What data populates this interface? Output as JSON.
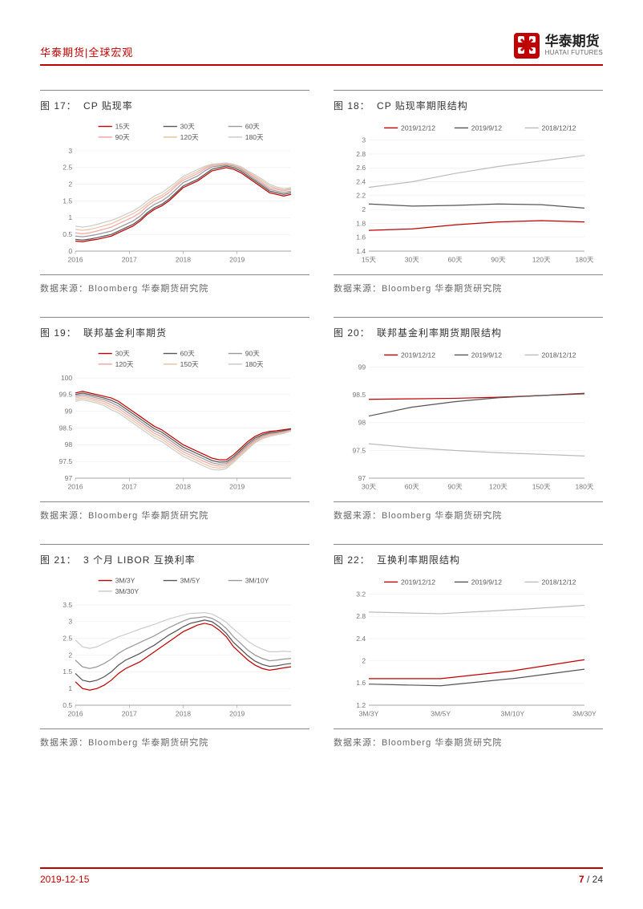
{
  "header": {
    "title": "华泰期货|全球宏观",
    "logo_cn": "华泰期货",
    "logo_en": "HUATAI FUTURES"
  },
  "colors": {
    "brand_red": "#c00000",
    "grey_dark": "#555555",
    "grey_mid": "#999999",
    "grey_light": "#cccccc",
    "pink": "#f4a6a6",
    "salmon": "#e8c4a0",
    "axis": "#888888",
    "bg": "#ffffff"
  },
  "source_label": "数据来源：Bloomberg 华泰期货研究院",
  "charts": [
    {
      "id": 17,
      "title": "CP 贴现率",
      "type": "line-multi-time",
      "legend": [
        "15天",
        "30天",
        "60天",
        "90天",
        "120天",
        "180天"
      ],
      "legend_colors": [
        "#c00000",
        "#555555",
        "#999999",
        "#f4a6a6",
        "#e8c4a0",
        "#cccccc"
      ],
      "x_labels": [
        "2016",
        "2017",
        "2018",
        "2019"
      ],
      "y_ticks": [
        0,
        0.5,
        1,
        1.5,
        2,
        2.5,
        3
      ],
      "series": [
        [
          0.3,
          0.28,
          0.32,
          0.35,
          0.4,
          0.45,
          0.55,
          0.65,
          0.75,
          0.9,
          1.1,
          1.25,
          1.35,
          1.5,
          1.7,
          1.9,
          2.0,
          2.1,
          2.25,
          2.4,
          2.45,
          2.5,
          2.45,
          2.35,
          2.2,
          2.05,
          1.9,
          1.75,
          1.7,
          1.65,
          1.7
        ],
        [
          0.35,
          0.33,
          0.36,
          0.4,
          0.45,
          0.5,
          0.6,
          0.7,
          0.8,
          0.95,
          1.15,
          1.3,
          1.4,
          1.55,
          1.75,
          1.95,
          2.05,
          2.15,
          2.3,
          2.45,
          2.5,
          2.55,
          2.5,
          2.4,
          2.25,
          2.1,
          1.95,
          1.8,
          1.75,
          1.7,
          1.75
        ],
        [
          0.45,
          0.43,
          0.46,
          0.5,
          0.55,
          0.6,
          0.7,
          0.8,
          0.9,
          1.05,
          1.25,
          1.4,
          1.5,
          1.65,
          1.85,
          2.05,
          2.15,
          2.25,
          2.4,
          2.52,
          2.55,
          2.58,
          2.55,
          2.45,
          2.3,
          2.15,
          2.0,
          1.85,
          1.8,
          1.75,
          1.8
        ],
        [
          0.55,
          0.52,
          0.55,
          0.6,
          0.66,
          0.72,
          0.82,
          0.92,
          1.02,
          1.15,
          1.35,
          1.5,
          1.6,
          1.75,
          1.95,
          2.12,
          2.22,
          2.32,
          2.46,
          2.56,
          2.58,
          2.6,
          2.57,
          2.48,
          2.34,
          2.2,
          2.05,
          1.9,
          1.85,
          1.8,
          1.85
        ],
        [
          0.65,
          0.62,
          0.65,
          0.7,
          0.76,
          0.82,
          0.92,
          1.02,
          1.12,
          1.25,
          1.42,
          1.57,
          1.67,
          1.82,
          2.0,
          2.18,
          2.28,
          2.38,
          2.5,
          2.58,
          2.6,
          2.62,
          2.58,
          2.5,
          2.37,
          2.24,
          2.1,
          1.95,
          1.88,
          1.83,
          1.88
        ],
        [
          0.75,
          0.72,
          0.75,
          0.8,
          0.86,
          0.92,
          1.0,
          1.1,
          1.2,
          1.33,
          1.5,
          1.65,
          1.75,
          1.9,
          2.06,
          2.24,
          2.34,
          2.44,
          2.54,
          2.6,
          2.62,
          2.64,
          2.6,
          2.53,
          2.4,
          2.28,
          2.15,
          2.0,
          1.92,
          1.87,
          1.9
        ]
      ]
    },
    {
      "id": 18,
      "title": "CP 贴现率期限结构",
      "type": "line-term",
      "legend": [
        "2019/12/12",
        "2019/9/12",
        "2018/12/12"
      ],
      "legend_colors": [
        "#c00000",
        "#555555",
        "#bbbbbb"
      ],
      "x_labels": [
        "15天",
        "30天",
        "60天",
        "90天",
        "120天",
        "180天"
      ],
      "y_ticks": [
        1.4,
        1.6,
        1.8,
        2.0,
        2.2,
        2.4,
        2.6,
        2.8,
        3.0
      ],
      "series": [
        [
          1.7,
          1.72,
          1.78,
          1.82,
          1.84,
          1.82
        ],
        [
          2.08,
          2.05,
          2.06,
          2.08,
          2.07,
          2.02
        ],
        [
          2.32,
          2.4,
          2.52,
          2.62,
          2.7,
          2.78
        ]
      ]
    },
    {
      "id": 19,
      "title": "联邦基金利率期货",
      "type": "line-multi-time",
      "legend": [
        "30天",
        "60天",
        "90天",
        "120天",
        "150天",
        "180天"
      ],
      "legend_colors": [
        "#c00000",
        "#555555",
        "#999999",
        "#f4a6a6",
        "#e8c4a0",
        "#cccccc"
      ],
      "x_labels": [
        "2016",
        "2017",
        "2018",
        "2019"
      ],
      "y_ticks": [
        97,
        97.5,
        98,
        98.5,
        99,
        99.5,
        100
      ],
      "series": [
        [
          99.55,
          99.6,
          99.55,
          99.5,
          99.45,
          99.4,
          99.3,
          99.15,
          99.0,
          98.85,
          98.7,
          98.55,
          98.45,
          98.3,
          98.15,
          98.0,
          97.9,
          97.8,
          97.7,
          97.6,
          97.55,
          97.55,
          97.7,
          97.9,
          98.1,
          98.25,
          98.35,
          98.4,
          98.42,
          98.45,
          98.48
        ],
        [
          99.5,
          99.55,
          99.5,
          99.45,
          99.4,
          99.33,
          99.23,
          99.08,
          98.93,
          98.78,
          98.63,
          98.48,
          98.38,
          98.23,
          98.08,
          97.93,
          97.83,
          97.73,
          97.63,
          97.53,
          97.48,
          97.49,
          97.64,
          97.84,
          98.04,
          98.2,
          98.3,
          98.36,
          98.38,
          98.42,
          98.46
        ],
        [
          99.45,
          99.5,
          99.45,
          99.4,
          99.35,
          99.26,
          99.16,
          99.01,
          98.86,
          98.71,
          98.56,
          98.41,
          98.31,
          98.16,
          98.01,
          97.86,
          97.76,
          97.66,
          97.56,
          97.46,
          97.42,
          97.44,
          97.59,
          97.79,
          97.99,
          98.15,
          98.27,
          98.33,
          98.36,
          98.4,
          98.44
        ],
        [
          99.4,
          99.45,
          99.4,
          99.35,
          99.29,
          99.19,
          99.09,
          98.94,
          98.79,
          98.64,
          98.49,
          98.34,
          98.24,
          98.09,
          97.94,
          97.79,
          97.69,
          97.59,
          97.49,
          97.4,
          97.36,
          97.39,
          97.55,
          97.75,
          97.95,
          98.12,
          98.24,
          98.31,
          98.34,
          98.38,
          98.43
        ],
        [
          99.35,
          99.4,
          99.35,
          99.3,
          99.23,
          99.12,
          99.02,
          98.87,
          98.72,
          98.57,
          98.42,
          98.27,
          98.17,
          98.02,
          97.87,
          97.72,
          97.62,
          97.52,
          97.42,
          97.33,
          97.3,
          97.34,
          97.51,
          97.71,
          97.91,
          98.09,
          98.21,
          98.28,
          98.32,
          98.36,
          98.42
        ],
        [
          99.3,
          99.35,
          99.3,
          99.25,
          99.17,
          99.05,
          98.95,
          98.8,
          98.65,
          98.5,
          98.35,
          98.2,
          98.1,
          97.95,
          97.8,
          97.65,
          97.55,
          97.45,
          97.35,
          97.26,
          97.24,
          97.29,
          97.47,
          97.67,
          97.87,
          98.06,
          98.18,
          98.25,
          98.3,
          98.34,
          98.41
        ]
      ]
    },
    {
      "id": 20,
      "title": "联邦基金利率期货期限结构",
      "type": "line-term",
      "legend": [
        "2019/12/12",
        "2019/9/12",
        "2018/12/12"
      ],
      "legend_colors": [
        "#c00000",
        "#555555",
        "#bbbbbb"
      ],
      "x_labels": [
        "30天",
        "60天",
        "90天",
        "120天",
        "150天",
        "180天"
      ],
      "y_ticks": [
        97,
        97.5,
        98,
        98.5,
        99
      ],
      "series": [
        [
          98.42,
          98.43,
          98.44,
          98.46,
          98.49,
          98.53
        ],
        [
          98.12,
          98.28,
          98.38,
          98.45,
          98.49,
          98.52
        ],
        [
          97.62,
          97.55,
          97.5,
          97.46,
          97.43,
          97.4
        ]
      ]
    },
    {
      "id": 21,
      "title": "3 个月 LIBOR 互换利率",
      "type": "line-multi-time",
      "legend": [
        "3M/3Y",
        "3M/5Y",
        "3M/10Y",
        "3M/30Y"
      ],
      "legend_colors": [
        "#c00000",
        "#555555",
        "#999999",
        "#cccccc"
      ],
      "x_labels": [
        "2016",
        "2017",
        "2018",
        "2019"
      ],
      "y_ticks": [
        0.5,
        1,
        1.5,
        2,
        2.5,
        3,
        3.5
      ],
      "series": [
        [
          1.2,
          1.0,
          0.95,
          1.0,
          1.1,
          1.25,
          1.45,
          1.6,
          1.7,
          1.8,
          1.95,
          2.1,
          2.25,
          2.4,
          2.55,
          2.7,
          2.8,
          2.9,
          2.95,
          2.9,
          2.75,
          2.55,
          2.25,
          2.05,
          1.85,
          1.7,
          1.6,
          1.55,
          1.58,
          1.62,
          1.65
        ],
        [
          1.45,
          1.25,
          1.2,
          1.25,
          1.35,
          1.5,
          1.7,
          1.85,
          1.95,
          2.05,
          2.18,
          2.3,
          2.45,
          2.6,
          2.72,
          2.85,
          2.95,
          3.0,
          3.05,
          3.0,
          2.85,
          2.65,
          2.38,
          2.18,
          1.98,
          1.82,
          1.72,
          1.66,
          1.68,
          1.72,
          1.75
        ],
        [
          1.85,
          1.65,
          1.6,
          1.65,
          1.75,
          1.88,
          2.05,
          2.18,
          2.28,
          2.38,
          2.48,
          2.58,
          2.7,
          2.82,
          2.92,
          3.02,
          3.1,
          3.12,
          3.15,
          3.1,
          2.98,
          2.8,
          2.55,
          2.35,
          2.15,
          2.0,
          1.9,
          1.83,
          1.85,
          1.88,
          1.9
        ],
        [
          2.45,
          2.25,
          2.2,
          2.25,
          2.35,
          2.45,
          2.55,
          2.62,
          2.7,
          2.78,
          2.85,
          2.92,
          3.0,
          3.08,
          3.14,
          3.2,
          3.25,
          3.26,
          3.27,
          3.23,
          3.12,
          2.98,
          2.78,
          2.6,
          2.42,
          2.28,
          2.18,
          2.1,
          2.1,
          2.12,
          2.1
        ]
      ]
    },
    {
      "id": 22,
      "title": "互换利率期限结构",
      "type": "line-term",
      "legend": [
        "2019/12/12",
        "2019/9/12",
        "2018/12/12"
      ],
      "legend_colors": [
        "#c00000",
        "#555555",
        "#bbbbbb"
      ],
      "x_labels": [
        "3M/3Y",
        "3M/5Y",
        "3M/10Y",
        "3M/30Y"
      ],
      "y_ticks": [
        1.2,
        1.6,
        2.0,
        2.4,
        2.8,
        3.2
      ],
      "series": [
        [
          1.68,
          1.68,
          1.82,
          2.02
        ],
        [
          1.58,
          1.55,
          1.68,
          1.85
        ],
        [
          2.88,
          2.85,
          2.92,
          3.0
        ]
      ]
    }
  ],
  "footer": {
    "date": "2019-12-15",
    "page_current": "7",
    "page_sep": " / ",
    "page_total": "24"
  }
}
